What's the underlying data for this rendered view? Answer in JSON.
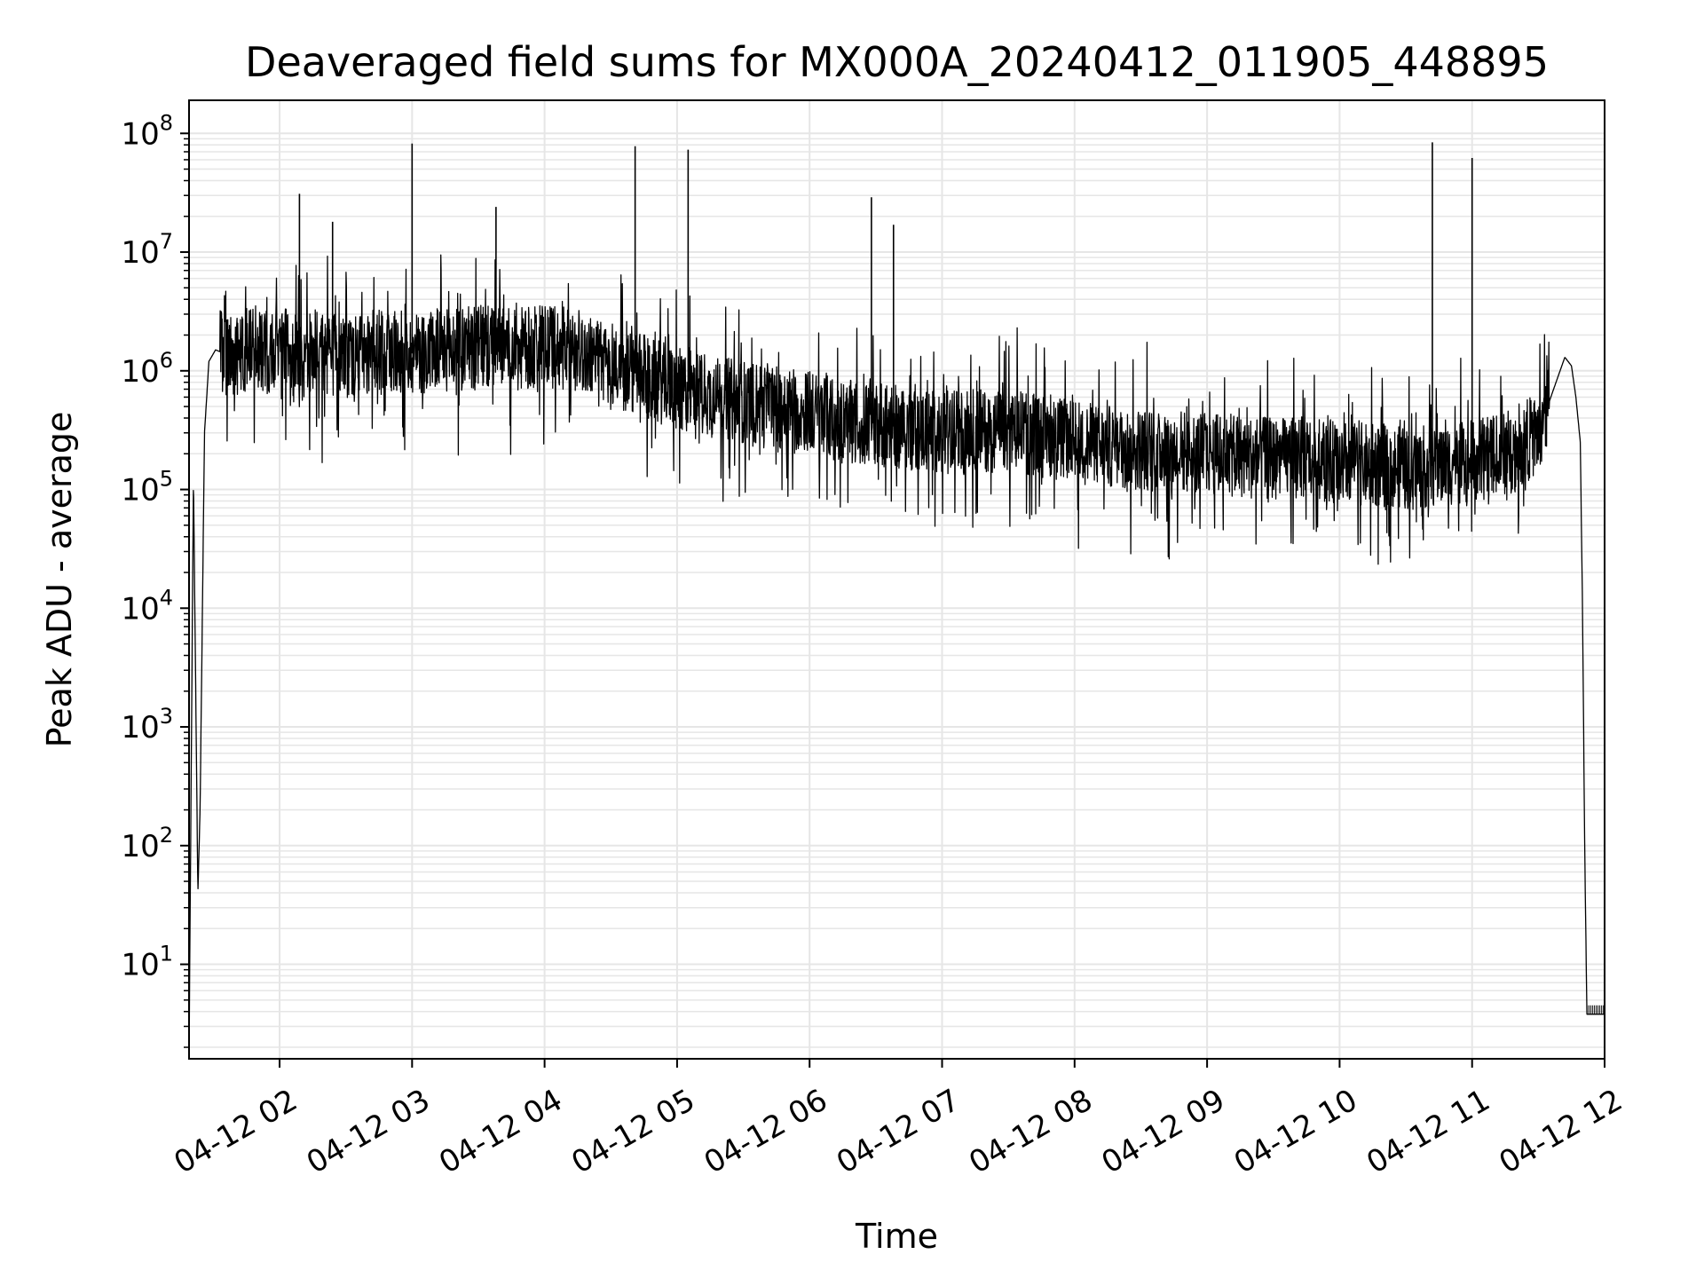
{
  "chart_data": {
    "type": "line",
    "title": "Deaveraged field sums for MX000A_20240412_011905_448895",
    "xlabel": "Time",
    "ylabel": "Peak ADU - average",
    "y_scale": "log",
    "ylim": [
      1.6,
      190000000.0
    ],
    "xlim": [
      "2024-04-12 01:19",
      "2024-04-12 12:00"
    ],
    "x_tick_labels": [
      "04-12 02",
      "04-12 03",
      "04-12 04",
      "04-12 05",
      "04-12 06",
      "04-12 07",
      "04-12 08",
      "04-12 09",
      "04-12 10",
      "04-12 11",
      "04-12 12"
    ],
    "x_ticks": [
      "2024-04-12 02:00",
      "2024-04-12 03:00",
      "2024-04-12 04:00",
      "2024-04-12 05:00",
      "2024-04-12 06:00",
      "2024-04-12 07:00",
      "2024-04-12 08:00",
      "2024-04-12 09:00",
      "2024-04-12 10:00",
      "2024-04-12 11:00",
      "2024-04-12 12:00"
    ],
    "y_ticks": [
      {
        "value": 10,
        "base": "10",
        "exp": "1"
      },
      {
        "value": 100,
        "base": "10",
        "exp": "2"
      },
      {
        "value": 1000,
        "base": "10",
        "exp": "3"
      },
      {
        "value": 10000,
        "base": "10",
        "exp": "4"
      },
      {
        "value": 100000,
        "base": "10",
        "exp": "5"
      },
      {
        "value": 1000000,
        "base": "10",
        "exp": "6"
      },
      {
        "value": 10000000,
        "base": "10",
        "exp": "7"
      },
      {
        "value": 100000000,
        "base": "10",
        "exp": "8"
      }
    ],
    "grid": true,
    "minor_grid": true,
    "line_color": "#000000",
    "grid_color": "#e6e6e6",
    "series": [
      {
        "x": [
          "2024-04-12 01:19",
          "2024-04-12 01:21",
          "2024-04-12 01:23",
          "2024-04-12 01:24",
          "2024-04-12 01:26",
          "2024-04-12 01:28",
          "2024-04-12 01:31",
          "2024-04-12 01:35",
          "2024-04-12 01:40",
          "2024-04-12 01:45",
          "2024-04-12 01:50",
          "2024-04-12 01:55",
          "2024-04-12 02:00",
          "2024-04-12 02:15",
          "2024-04-12 02:30",
          "2024-04-12 02:45",
          "2024-04-12 03:00",
          "2024-04-12 03:15",
          "2024-04-12 03:30",
          "2024-04-12 03:45",
          "2024-04-12 04:00",
          "2024-04-12 04:15",
          "2024-04-12 04:30",
          "2024-04-12 04:45",
          "2024-04-12 05:00",
          "2024-04-12 05:15",
          "2024-04-12 05:30",
          "2024-04-12 05:45",
          "2024-04-12 06:00",
          "2024-04-12 06:15",
          "2024-04-12 06:30",
          "2024-04-12 06:45",
          "2024-04-12 07:00",
          "2024-04-12 07:15",
          "2024-04-12 07:30",
          "2024-04-12 07:45",
          "2024-04-12 08:00",
          "2024-04-12 08:15",
          "2024-04-12 08:30",
          "2024-04-12 08:45",
          "2024-04-12 09:00",
          "2024-04-12 09:15",
          "2024-04-12 09:30",
          "2024-04-12 09:45",
          "2024-04-12 10:00",
          "2024-04-12 10:15",
          "2024-04-12 10:30",
          "2024-04-12 10:45",
          "2024-04-12 11:00",
          "2024-04-12 11:15",
          "2024-04-12 11:30",
          "2024-04-12 11:38",
          "2024-04-12 11:42",
          "2024-04-12 11:45",
          "2024-04-12 11:47",
          "2024-04-12 11:49",
          "2024-04-12 11:50",
          "2024-04-12 11:51",
          "2024-04-12 11:52",
          "2024-04-12 12:00"
        ],
        "values": [
          1.6,
          130000,
          40,
          200,
          300000,
          1200000,
          1500000,
          1400000,
          1300000,
          1500000,
          1600000,
          1400000,
          1500000,
          1400000,
          1300000,
          1500000,
          1400000,
          1500000,
          1600000,
          1500000,
          1600000,
          1500000,
          1100000,
          900000,
          700000,
          600000,
          550000,
          500000,
          450000,
          380000,
          350000,
          330000,
          300000,
          320000,
          300000,
          280000,
          250000,
          230000,
          220000,
          210000,
          200000,
          190000,
          180000,
          185000,
          170000,
          160000,
          150000,
          160000,
          170000,
          200000,
          300000,
          800000,
          1300000,
          1100000,
          600000,
          250000,
          10000,
          90,
          3.8,
          3.8
        ],
        "noise_range": [
          "2024-04-12 01:33",
          "2024-04-12 11:35"
        ],
        "spikes": [
          {
            "x": "2024-04-12 02:09",
            "y": 31000000
          },
          {
            "x": "2024-04-12 02:24",
            "y": 18000000
          },
          {
            "x": "2024-04-12 03:00",
            "y": 82000000
          },
          {
            "x": "2024-04-12 03:38",
            "y": 24000000
          },
          {
            "x": "2024-04-12 04:41",
            "y": 78000000
          },
          {
            "x": "2024-04-12 05:05",
            "y": 73000000
          },
          {
            "x": "2024-04-12 06:28",
            "y": 29000000
          },
          {
            "x": "2024-04-12 06:38",
            "y": 17000000
          },
          {
            "x": "2024-04-12 10:42",
            "y": 84000000
          },
          {
            "x": "2024-04-12 11:00",
            "y": 62000000
          }
        ]
      }
    ]
  }
}
